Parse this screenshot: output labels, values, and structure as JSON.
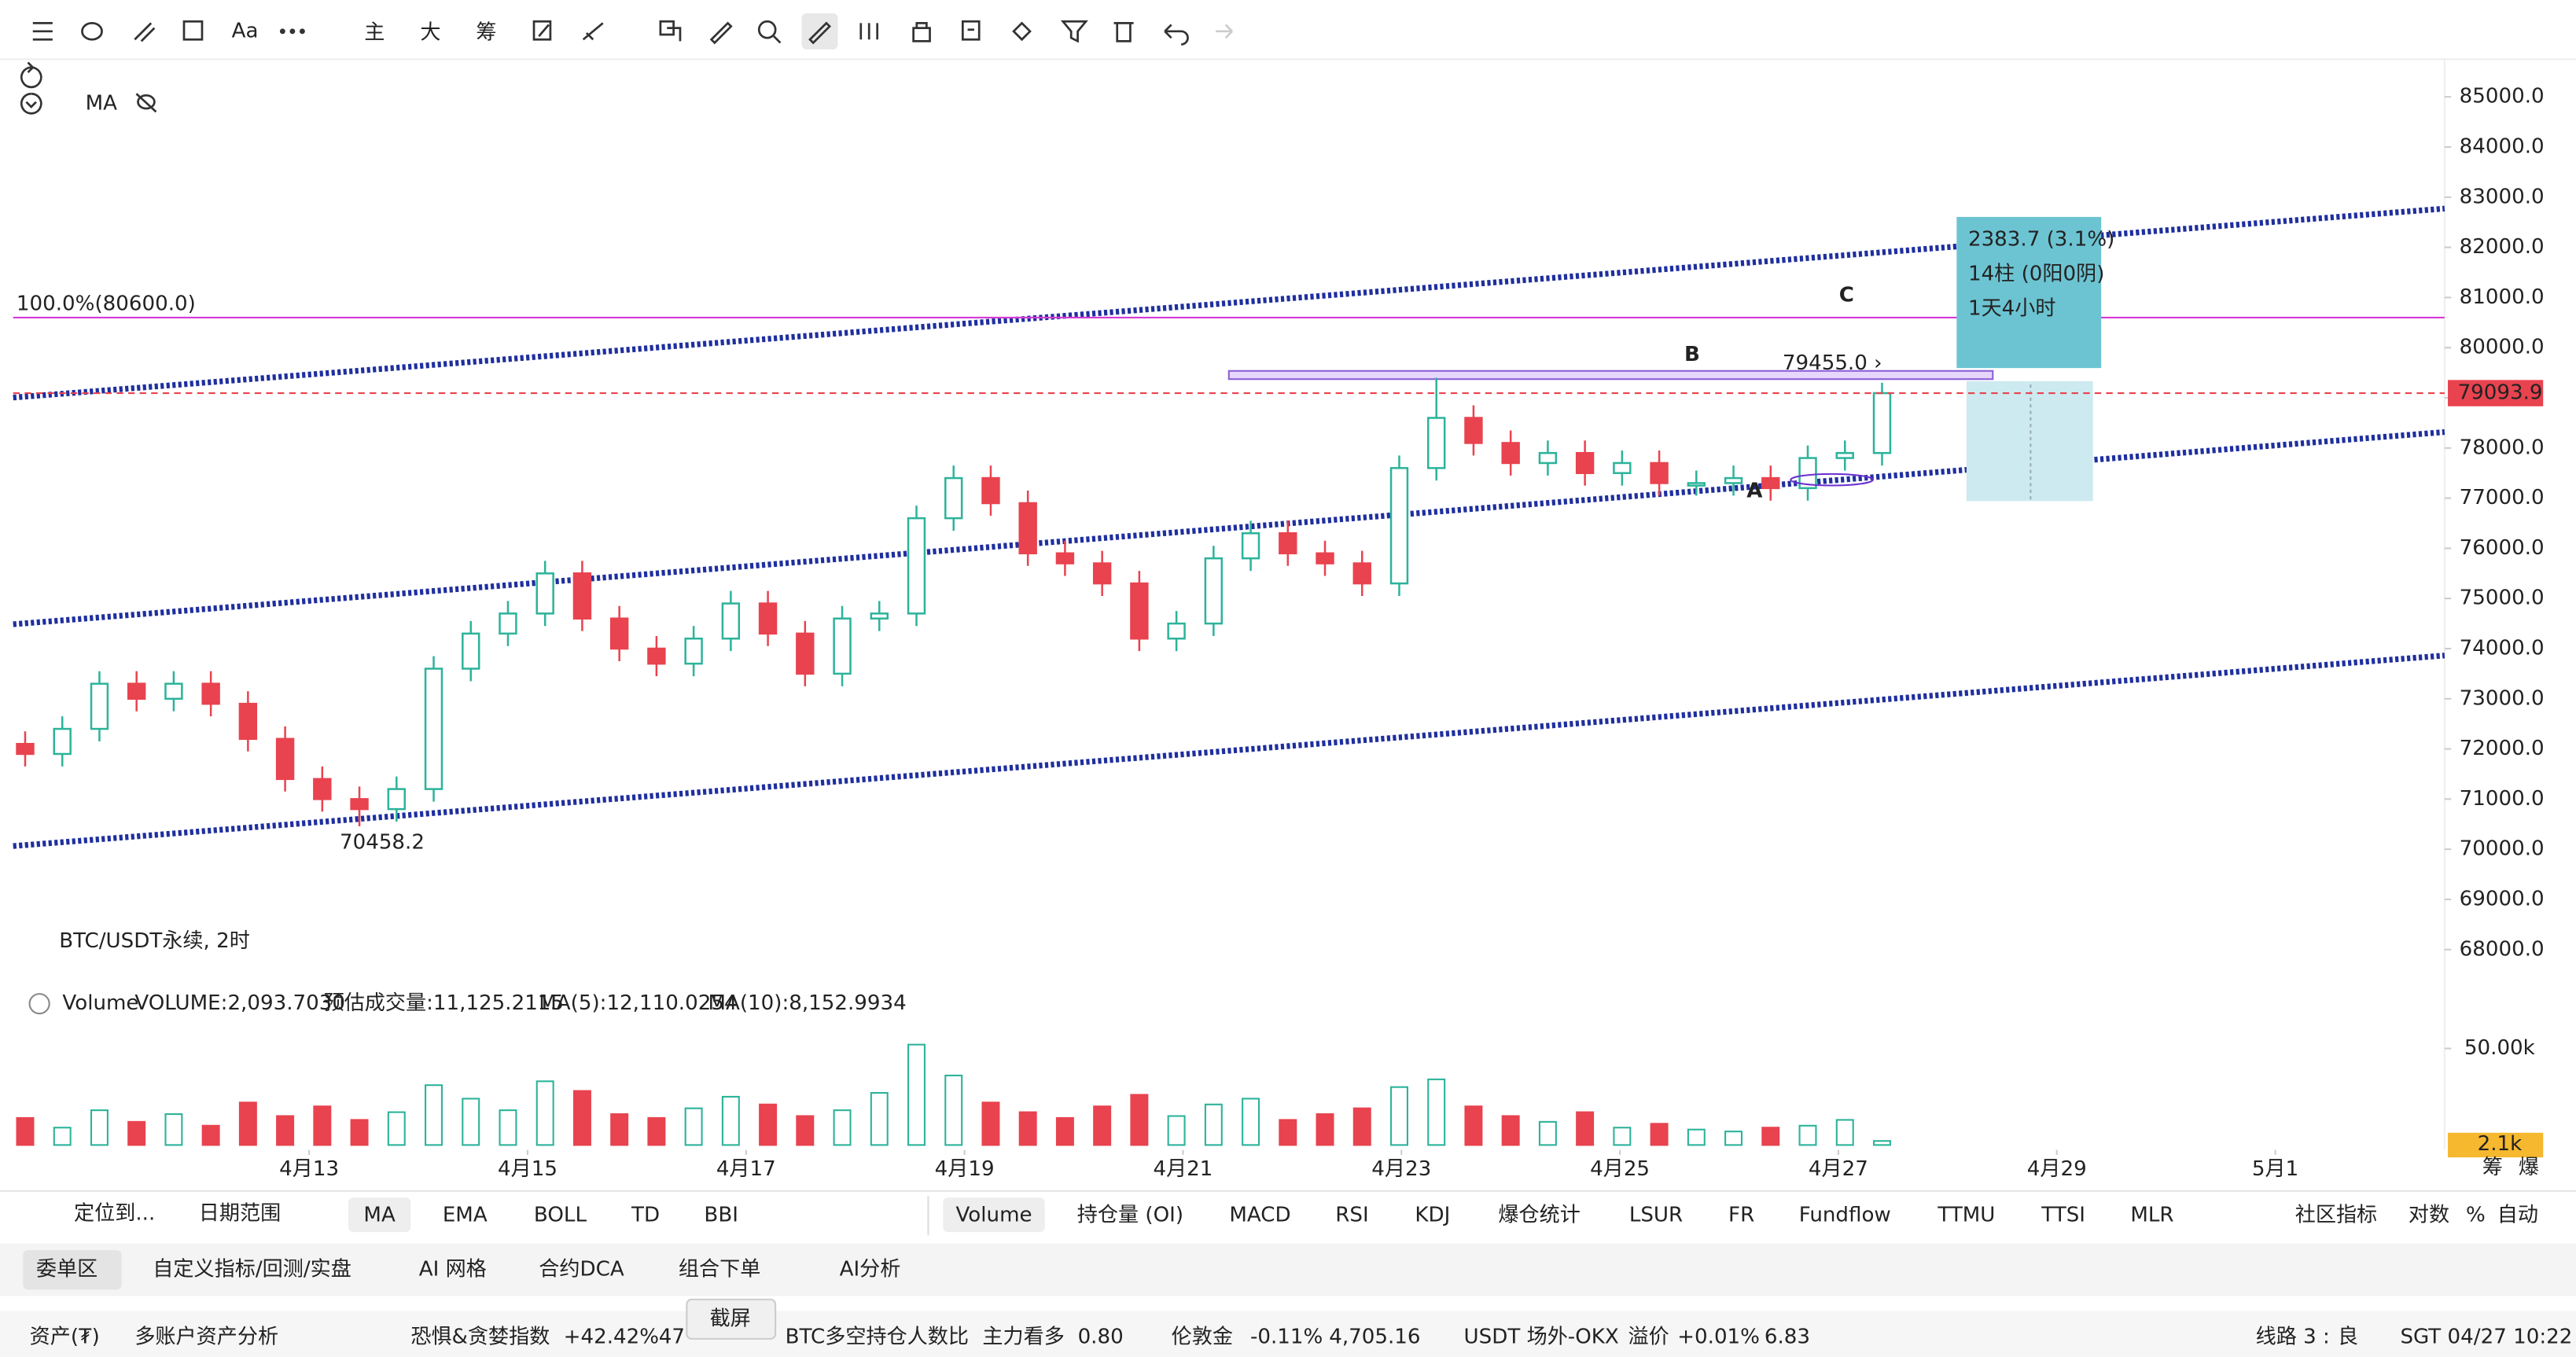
{
  "toolbar": {
    "text_tool": "Aa",
    "main": "主",
    "big": "大",
    "chips": "筹"
  },
  "chart_data": {
    "type": "candlestick",
    "title": "BTC/USDT永续, 2时",
    "indicator_label": "MA",
    "up_color": "#2cb39a",
    "down_color": "#e8434f",
    "xlim": [
      10.29,
      32.55
    ],
    "xticks": [
      {
        "value": 13,
        "label": "4月13"
      },
      {
        "value": 15,
        "label": "4月15"
      },
      {
        "value": 17,
        "label": "4月17"
      },
      {
        "value": 19,
        "label": "4月19"
      },
      {
        "value": 21,
        "label": "4月21"
      },
      {
        "value": 23,
        "label": "4月23"
      },
      {
        "value": 25,
        "label": "4月25"
      },
      {
        "value": 27,
        "label": "4月27"
      },
      {
        "value": 29,
        "label": "4月29"
      },
      {
        "value": 31,
        "label": "5月1"
      }
    ],
    "ylim": [
      67280,
      85620
    ],
    "yticks": [
      {
        "value": 68000,
        "label": "68000.0"
      },
      {
        "value": 69000,
        "label": "69000.0"
      },
      {
        "value": 70000,
        "label": "70000.0"
      },
      {
        "value": 71000,
        "label": "71000.0"
      },
      {
        "value": 72000,
        "label": "72000.0"
      },
      {
        "value": 73000,
        "label": "73000.0"
      },
      {
        "value": 74000,
        "label": "74000.0"
      },
      {
        "value": 75000,
        "label": "75000.0"
      },
      {
        "value": 76000,
        "label": "76000.0"
      },
      {
        "value": 77000,
        "label": "77000.0"
      },
      {
        "value": 78000,
        "label": "78000.0"
      },
      {
        "value": 79000,
        "label": "79000.0"
      },
      {
        "value": 80000,
        "label": "80000.0"
      },
      {
        "value": 81000,
        "label": "81000.0"
      },
      {
        "value": 82000,
        "label": "82000.0"
      },
      {
        "value": 83000,
        "label": "83000.0"
      },
      {
        "value": 84000,
        "label": "84000.0"
      },
      {
        "value": 85000,
        "label": "85000.0"
      }
    ],
    "candles": {
      "x": [
        10.4,
        10.74,
        11.08,
        11.42,
        11.76,
        12.1,
        12.44,
        12.78,
        13.12,
        13.46,
        13.8,
        14.14,
        14.48,
        14.82,
        15.16,
        15.5,
        15.84,
        16.18,
        16.52,
        16.86,
        17.2,
        17.54,
        17.88,
        18.22,
        18.56,
        18.9,
        19.24,
        19.58,
        19.92,
        20.26,
        20.6,
        20.94,
        21.28,
        21.62,
        21.96,
        22.3,
        22.64,
        22.98,
        23.32,
        23.66,
        24.0,
        24.34,
        24.68,
        25.02,
        25.36,
        25.7,
        26.04,
        26.38,
        26.72,
        27.06,
        27.4
      ],
      "open": [
        72100,
        71900,
        72400,
        73300,
        73000,
        73300,
        72900,
        72200,
        71400,
        71000,
        70800,
        71200,
        73600,
        74300,
        74700,
        75500,
        74600,
        74000,
        73700,
        74200,
        74900,
        74300,
        73500,
        74600,
        74700,
        76600,
        77400,
        76900,
        75900,
        75700,
        75300,
        74200,
        74500,
        75800,
        76300,
        75900,
        75700,
        75300,
        77600,
        78600,
        78100,
        77700,
        77900,
        77500,
        77700,
        77300,
        77300,
        77400,
        77200,
        77800,
        77900
      ],
      "high": [
        72350,
        72650,
        73550,
        73550,
        73550,
        73550,
        73150,
        72450,
        71650,
        71250,
        71450,
        73850,
        74550,
        74950,
        75750,
        75750,
        74850,
        74250,
        74450,
        75150,
        75150,
        74550,
        74850,
        74950,
        76850,
        77650,
        77650,
        77150,
        76150,
        75950,
        75550,
        74750,
        76050,
        76550,
        76550,
        76150,
        75950,
        77850,
        79400,
        78850,
        78350,
        78150,
        78150,
        77950,
        77950,
        77550,
        77650,
        77650,
        78050,
        78150,
        79300
      ],
      "low": [
        71650,
        71650,
        72150,
        72750,
        72750,
        72650,
        71950,
        71150,
        70750,
        70458.2,
        70550,
        70950,
        73350,
        74050,
        74450,
        74350,
        73750,
        73450,
        73450,
        73950,
        74050,
        73250,
        73250,
        74350,
        74450,
        76350,
        76650,
        75650,
        75450,
        75050,
        73950,
        73950,
        74250,
        75550,
        75650,
        75450,
        75050,
        75050,
        77350,
        77850,
        77450,
        77450,
        77250,
        77250,
        77050,
        77050,
        77050,
        76950,
        76950,
        77550,
        77650
      ],
      "close": [
        71900,
        72400,
        73300,
        73000,
        73300,
        72900,
        72200,
        71400,
        71000,
        70800,
        71200,
        73600,
        74300,
        74700,
        75500,
        74600,
        74000,
        73700,
        74200,
        74900,
        74300,
        73500,
        74600,
        74700,
        76600,
        77400,
        76900,
        75900,
        75700,
        75300,
        74200,
        74500,
        75800,
        76300,
        75900,
        75700,
        75300,
        77600,
        78600,
        78100,
        77700,
        77900,
        77500,
        77700,
        77300,
        77300,
        77400,
        77200,
        77800,
        77900,
        79093.9
      ]
    },
    "channels": [
      {
        "start": [
          10.29,
          79006
        ],
        "end": [
          32.55,
          82773
        ]
      },
      {
        "start": [
          10.29,
          74486
        ],
        "end": [
          32.55,
          78318
        ]
      },
      {
        "start": [
          10.29,
          70064
        ],
        "end": [
          32.55,
          73863
        ]
      }
    ],
    "channel_color": "#1f2f9e",
    "fib_level": {
      "value": 80600,
      "label": "100.0%(80600.0)"
    },
    "fib_color": "#d63bd6",
    "level_b": {
      "value": 79455,
      "label": "79455.0 ›"
    },
    "waves": [
      "A",
      "B",
      "C"
    ],
    "wave_color": "#6a2fd0",
    "measure": {
      "change": "2383.7 (3.1%)",
      "bars": "14柱 (0阳0阴)",
      "duration": "1天4小时"
    },
    "volume": {
      "legend": {
        "name": "Volume",
        "volume": "VOLUME:2,093.7030",
        "estimate": "预估成交量:11,125.2115",
        "ma5": "MA(5):12,110.0254",
        "ma10": "MA(10):8,152.9934"
      },
      "ylim": [
        0,
        57000
      ],
      "yticks": [
        {
          "value": 50000,
          "label": "50.00k"
        }
      ],
      "values": [
        14000,
        9000,
        18000,
        12000,
        16000,
        10000,
        22000,
        15000,
        20000,
        13000,
        17000,
        31000,
        24000,
        18000,
        33000,
        28000,
        16000,
        14000,
        19000,
        25000,
        21000,
        15000,
        18000,
        27000,
        52000,
        36000,
        22000,
        17000,
        14000,
        20000,
        26000,
        15000,
        21000,
        24000,
        13000,
        16000,
        19000,
        30000,
        34000,
        20000,
        15000,
        12000,
        17000,
        9000,
        11000,
        8000,
        7000,
        9000,
        10000,
        13000,
        2093.703
      ],
      "value_labels": [
        "",
        "",
        "",
        "",
        "",
        "",
        "",
        "",
        "",
        "",
        "",
        "",
        "",
        "",
        "",
        "",
        "",
        "",
        "",
        "",
        "",
        "",
        "",
        "",
        "",
        "",
        "",
        "",
        "",
        "",
        "",
        "",
        "",
        "",
        "",
        "",
        "",
        "",
        "",
        "",
        "",
        "",
        "",
        "",
        "",
        "",
        "",
        "",
        "",
        "",
        "2.1k"
      ]
    },
    "axis_corner": {
      "chips": "筹",
      "liq": "爆"
    }
  },
  "indicator_tabs": {
    "locate": "定位到...",
    "date_range": "日期范围",
    "main": [
      "MA",
      "EMA",
      "BOLL",
      "TD",
      "BBI"
    ],
    "sub": [
      "Volume",
      "持仓量 (OI)",
      "MACD",
      "RSI",
      "KDJ",
      "爆仓统计",
      "LSUR",
      "FR",
      "Fundflow",
      "TTMU",
      "TTSI",
      "MLR"
    ],
    "community": "社区指标",
    "log": "对数",
    "percent": "%",
    "auto": "自动"
  },
  "bottom_tabs": [
    "委单区",
    "自定义指标/回测/实盘",
    "AI 网格",
    "合约DCA",
    "组合下单",
    "AI分析"
  ],
  "status_bar": {
    "assets": "资产(₮)",
    "multi": "多账户资产分析",
    "fear_greed": "恐惧&贪婪指数",
    "fear_change": "+42.42%",
    "fear_value": "47",
    "screenshot": "截屏",
    "ls_ratio": "BTC多空持仓人数比",
    "ls_label": "主力看多",
    "ls_value": "0.80",
    "gold": "伦敦金",
    "gold_change": "-0.11%",
    "gold_price": "4,705.16",
    "otc": "USDT 场外-OKX",
    "premium": "溢价",
    "premium_value": "+0.01%",
    "otc_price": "6.83",
    "line": "线路 3 :",
    "line_quality": "良",
    "time": "SGT 04/27 10:22"
  }
}
